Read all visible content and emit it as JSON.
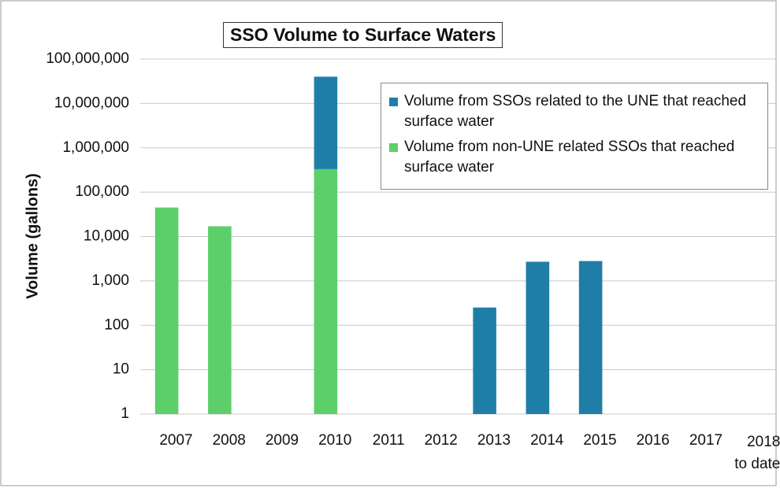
{
  "chart_data": {
    "type": "bar",
    "stacked": true,
    "title": "SSO Volume to Surface Waters",
    "y_label": "Volume (gallons)",
    "log_scale": true,
    "grid": true,
    "categories": [
      "2007",
      "2008",
      "2009",
      "2010",
      "2011",
      "2012",
      "2013",
      "2014",
      "2015",
      "2016",
      "2017",
      "2018\nto date"
    ],
    "series": [
      {
        "name": "Volume from non-UNE related SSOs that reached surface water",
        "color": "#5ccf6a",
        "values": [
          45000,
          17000,
          null,
          330000,
          null,
          null,
          null,
          null,
          null,
          null,
          null,
          null
        ]
      },
      {
        "name": "Volume from SSOs related to the UNE that reached surface water",
        "color": "#1f7ea8",
        "values": [
          null,
          null,
          null,
          39700000,
          null,
          null,
          250,
          2700,
          2800,
          null,
          null,
          null
        ]
      }
    ],
    "legend_order": [
      1,
      0
    ],
    "ylim": [
      1,
      100000000
    ],
    "yticks": [
      1,
      10,
      100,
      {
        "value": 1000,
        "label": "1,000"
      },
      {
        "value": 10000,
        "label": "10,000"
      },
      {
        "value": 100000,
        "label": "100,000"
      },
      {
        "value": 1000000,
        "label": "1,000,000"
      },
      {
        "value": 10000000,
        "label": "10,000,000"
      },
      {
        "value": 100000000,
        "label": "100,000,000"
      }
    ]
  }
}
